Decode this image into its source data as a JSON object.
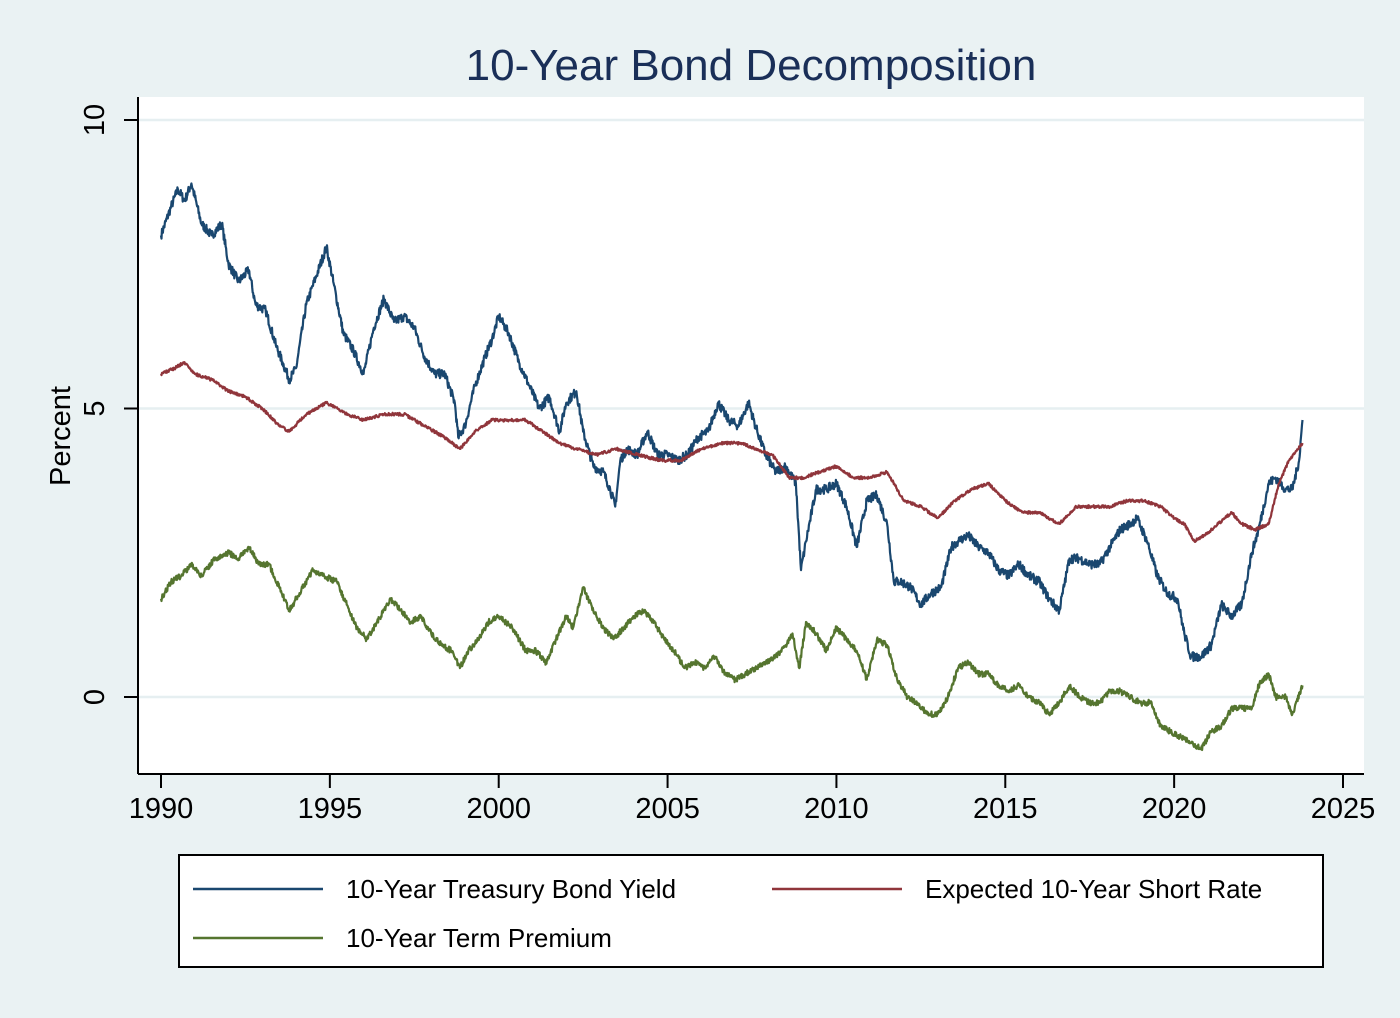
{
  "chart_data": {
    "type": "line",
    "title": "10-Year Bond Decomposition",
    "xlabel": "",
    "ylabel": "Percent",
    "xlim": [
      1990,
      2025
    ],
    "ylim": [
      -1.3,
      10.4
    ],
    "xticks": [
      "1990",
      "1995",
      "2000",
      "2005",
      "2010",
      "2015",
      "2020",
      "2025"
    ],
    "yticks": [
      "0",
      "5",
      "10"
    ],
    "grid": true,
    "legend_position": "bottom",
    "series": [
      {
        "name": "10-Year Treasury Bond Yield",
        "color": "#1a476f",
        "x": [
          1990.0,
          1990.3,
          1990.5,
          1990.7,
          1990.9,
          1991.2,
          1991.5,
          1991.8,
          1992.0,
          1992.3,
          1992.6,
          1992.8,
          1993.1,
          1993.4,
          1993.6,
          1993.8,
          1994.0,
          1994.3,
          1994.6,
          1994.9,
          1995.1,
          1995.4,
          1995.7,
          1996.0,
          1996.3,
          1996.6,
          1996.9,
          1997.2,
          1997.5,
          1997.8,
          1998.1,
          1998.4,
          1998.7,
          1998.8,
          1999.0,
          1999.3,
          1999.6,
          1999.8,
          2000.0,
          2000.3,
          2000.6,
          2000.9,
          2001.2,
          2001.5,
          2001.8,
          2002.0,
          2002.3,
          2002.5,
          2002.8,
          2003.1,
          2003.3,
          2003.45,
          2003.6,
          2003.8,
          2004.1,
          2004.4,
          2004.7,
          2005.0,
          2005.3,
          2005.6,
          2005.9,
          2006.2,
          2006.5,
          2006.8,
          2007.1,
          2007.4,
          2007.6,
          2007.9,
          2008.2,
          2008.5,
          2008.8,
          2008.95,
          2009.1,
          2009.4,
          2009.7,
          2010.0,
          2010.3,
          2010.6,
          2010.9,
          2011.2,
          2011.5,
          2011.7,
          2011.9,
          2012.2,
          2012.5,
          2012.8,
          2013.1,
          2013.4,
          2013.6,
          2013.9,
          2014.2,
          2014.5,
          2014.8,
          2015.1,
          2015.4,
          2015.7,
          2016.0,
          2016.3,
          2016.6,
          2016.9,
          2017.2,
          2017.5,
          2017.8,
          2018.1,
          2018.4,
          2018.7,
          2018.9,
          2019.2,
          2019.5,
          2019.8,
          2020.1,
          2020.3,
          2020.5,
          2020.8,
          2021.1,
          2021.4,
          2021.7,
          2022.0,
          2022.3,
          2022.5,
          2022.8,
          2023.0,
          2023.3,
          2023.5,
          2023.7,
          2023.8
        ],
        "y": [
          8.0,
          8.5,
          8.8,
          8.6,
          8.9,
          8.2,
          8.0,
          8.2,
          7.5,
          7.2,
          7.4,
          6.8,
          6.7,
          6.1,
          5.8,
          5.5,
          5.7,
          6.8,
          7.3,
          7.8,
          7.2,
          6.3,
          6.0,
          5.6,
          6.4,
          6.9,
          6.5,
          6.6,
          6.4,
          5.9,
          5.6,
          5.6,
          5.1,
          4.5,
          4.7,
          5.4,
          5.9,
          6.2,
          6.6,
          6.3,
          5.8,
          5.4,
          5.0,
          5.2,
          4.6,
          5.1,
          5.3,
          4.6,
          4.0,
          3.9,
          3.6,
          3.3,
          4.1,
          4.3,
          4.2,
          4.6,
          4.2,
          4.2,
          4.1,
          4.2,
          4.5,
          4.6,
          5.1,
          4.8,
          4.7,
          5.1,
          4.7,
          4.2,
          3.9,
          4.0,
          3.7,
          2.2,
          2.7,
          3.6,
          3.6,
          3.7,
          3.3,
          2.6,
          3.4,
          3.5,
          3.0,
          2.0,
          2.0,
          1.9,
          1.6,
          1.8,
          1.9,
          2.6,
          2.7,
          2.8,
          2.6,
          2.5,
          2.2,
          2.1,
          2.3,
          2.1,
          2.0,
          1.7,
          1.5,
          2.4,
          2.4,
          2.3,
          2.3,
          2.6,
          2.9,
          3.0,
          3.1,
          2.7,
          2.1,
          1.8,
          1.7,
          1.1,
          0.7,
          0.7,
          0.9,
          1.6,
          1.4,
          1.6,
          2.5,
          2.9,
          3.7,
          3.8,
          3.6,
          3.6,
          4.1,
          4.8
        ]
      },
      {
        "name": "Expected 10-Year Short Rate",
        "color": "#90353b",
        "x": [
          1990.0,
          1990.4,
          1990.7,
          1991.0,
          1991.5,
          1992.0,
          1992.5,
          1993.0,
          1993.5,
          1993.8,
          1994.3,
          1994.9,
          1995.5,
          1996.0,
          1996.6,
          1997.2,
          1997.8,
          1998.4,
          1998.85,
          1999.3,
          1999.8,
          2000.3,
          2000.8,
          2001.3,
          2001.8,
          2002.3,
          2002.9,
          2003.5,
          2004.1,
          2004.8,
          2005.4,
          2006.0,
          2006.6,
          2007.2,
          2007.6,
          2008.1,
          2008.6,
          2009.0,
          2009.5,
          2010.0,
          2010.5,
          2011.0,
          2011.5,
          2012.0,
          2012.5,
          2013.0,
          2013.5,
          2014.0,
          2014.5,
          2015.0,
          2015.5,
          2016.0,
          2016.6,
          2017.1,
          2017.6,
          2018.1,
          2018.6,
          2019.1,
          2019.6,
          2020.0,
          2020.3,
          2020.6,
          2020.9,
          2021.3,
          2021.7,
          2022.0,
          2022.4,
          2022.8,
          2023.1,
          2023.4,
          2023.8
        ],
        "y": [
          5.6,
          5.7,
          5.8,
          5.6,
          5.5,
          5.3,
          5.2,
          5.0,
          4.7,
          4.6,
          4.9,
          5.1,
          4.9,
          4.8,
          4.9,
          4.9,
          4.7,
          4.5,
          4.3,
          4.6,
          4.8,
          4.8,
          4.8,
          4.6,
          4.4,
          4.3,
          4.2,
          4.3,
          4.2,
          4.1,
          4.1,
          4.3,
          4.4,
          4.4,
          4.3,
          4.2,
          3.8,
          3.8,
          3.9,
          4.0,
          3.8,
          3.8,
          3.9,
          3.4,
          3.3,
          3.1,
          3.4,
          3.6,
          3.7,
          3.4,
          3.2,
          3.2,
          3.0,
          3.3,
          3.3,
          3.3,
          3.4,
          3.4,
          3.3,
          3.1,
          3.0,
          2.7,
          2.8,
          3.0,
          3.2,
          3.0,
          2.9,
          3.0,
          3.7,
          4.1,
          4.4
        ]
      },
      {
        "name": "10-Year Term Premium",
        "color": "#55752f",
        "x": [
          1990.0,
          1990.3,
          1990.6,
          1990.9,
          1991.2,
          1991.6,
          1992.0,
          1992.3,
          1992.6,
          1992.9,
          1993.2,
          1993.5,
          1993.8,
          1994.1,
          1994.5,
          1994.8,
          1995.2,
          1995.5,
          1995.8,
          1996.1,
          1996.4,
          1996.8,
          1997.1,
          1997.4,
          1997.7,
          1998.0,
          1998.3,
          1998.6,
          1998.85,
          1999.1,
          1999.4,
          1999.7,
          2000.0,
          2000.4,
          2000.8,
          2001.1,
          2001.4,
          2001.7,
          2002.0,
          2002.2,
          2002.5,
          2002.8,
          2003.1,
          2003.4,
          2003.7,
          2004.0,
          2004.3,
          2004.6,
          2004.9,
          2005.2,
          2005.5,
          2005.8,
          2006.1,
          2006.4,
          2006.7,
          2007.0,
          2007.3,
          2007.6,
          2007.9,
          2008.2,
          2008.5,
          2008.7,
          2008.9,
          2009.1,
          2009.4,
          2009.7,
          2010.0,
          2010.3,
          2010.6,
          2010.9,
          2011.2,
          2011.5,
          2011.8,
          2012.1,
          2012.4,
          2012.7,
          2013.0,
          2013.3,
          2013.6,
          2013.9,
          2014.2,
          2014.5,
          2014.8,
          2015.1,
          2015.4,
          2015.7,
          2016.0,
          2016.3,
          2016.6,
          2016.9,
          2017.2,
          2017.5,
          2017.8,
          2018.1,
          2018.4,
          2018.7,
          2019.0,
          2019.3,
          2019.6,
          2019.9,
          2020.2,
          2020.5,
          2020.8,
          2021.1,
          2021.4,
          2021.7,
          2022.0,
          2022.3,
          2022.5,
          2022.8,
          2023.0,
          2023.3,
          2023.5,
          2023.8
        ],
        "y": [
          1.7,
          2.0,
          2.1,
          2.3,
          2.1,
          2.4,
          2.5,
          2.4,
          2.6,
          2.3,
          2.3,
          1.9,
          1.5,
          1.8,
          2.2,
          2.1,
          2.0,
          1.6,
          1.2,
          1.0,
          1.3,
          1.7,
          1.5,
          1.3,
          1.4,
          1.1,
          0.9,
          0.8,
          0.5,
          0.8,
          1.0,
          1.3,
          1.4,
          1.2,
          0.8,
          0.8,
          0.6,
          1.0,
          1.4,
          1.2,
          1.9,
          1.5,
          1.2,
          1.0,
          1.2,
          1.4,
          1.5,
          1.3,
          1.0,
          0.8,
          0.5,
          0.6,
          0.5,
          0.7,
          0.4,
          0.3,
          0.4,
          0.5,
          0.6,
          0.7,
          0.9,
          1.1,
          0.5,
          1.3,
          1.1,
          0.8,
          1.2,
          1.0,
          0.8,
          0.3,
          1.0,
          0.9,
          0.3,
          0.0,
          -0.1,
          -0.3,
          -0.3,
          0.0,
          0.5,
          0.6,
          0.4,
          0.4,
          0.2,
          0.1,
          0.2,
          0.0,
          -0.1,
          -0.3,
          -0.1,
          0.2,
          0.0,
          -0.1,
          -0.1,
          0.1,
          0.1,
          0.0,
          -0.1,
          -0.1,
          -0.5,
          -0.6,
          -0.7,
          -0.8,
          -0.9,
          -0.6,
          -0.5,
          -0.2,
          -0.2,
          -0.2,
          0.2,
          0.4,
          0.0,
          0.0,
          -0.3,
          0.2
        ]
      }
    ]
  }
}
